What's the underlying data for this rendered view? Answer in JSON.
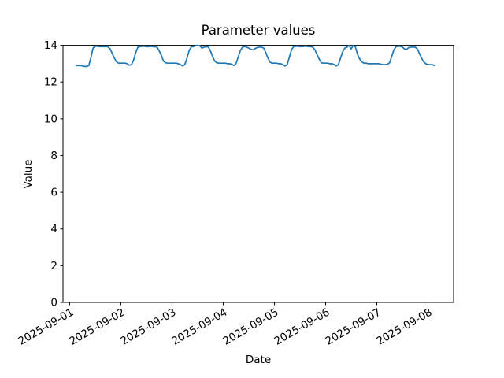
{
  "figure": {
    "background": "#ffffff",
    "text_color": "#000000"
  },
  "chart_data": {
    "type": "line",
    "title": "Parameter values",
    "xlabel": "Date",
    "ylabel": "Value",
    "legend": "none",
    "grid": false,
    "ylim": [
      0,
      14
    ],
    "y_ticks": [
      0,
      2,
      4,
      6,
      8,
      10,
      12,
      14
    ],
    "x_tick_labels": [
      "2025-09-01",
      "2025-09-02",
      "2025-09-03",
      "2025-09-04",
      "2025-09-05",
      "2025-09-06",
      "2025-09-07",
      "2025-09-08"
    ],
    "x_tick_hours": [
      0,
      24,
      48,
      72,
      96,
      120,
      144,
      168
    ],
    "xlim_hours": [
      -3.1,
      180.0
    ],
    "x_tick_rotation_deg": 30,
    "line_color": "#1f77b4",
    "series": [
      {
        "name": "Parameter values",
        "x_start": "2025-09-01 03:00",
        "x_start_hour": 3,
        "x_step_hours": 1,
        "values": [
          12.9,
          12.9,
          12.9,
          12.88,
          12.85,
          12.85,
          12.9,
          13.35,
          13.85,
          13.95,
          13.95,
          13.93,
          13.93,
          13.93,
          13.93,
          13.92,
          13.8,
          13.55,
          13.3,
          13.1,
          13.03,
          13.03,
          13.03,
          13.03,
          13.0,
          12.92,
          12.95,
          13.2,
          13.6,
          13.9,
          13.93,
          13.95,
          13.95,
          13.93,
          13.93,
          13.95,
          13.93,
          13.92,
          13.9,
          13.7,
          13.45,
          13.15,
          13.05,
          13.03,
          13.03,
          13.03,
          13.03,
          13.03,
          13.0,
          12.95,
          12.88,
          12.95,
          13.3,
          13.7,
          13.92,
          13.93,
          13.97,
          14.0,
          13.98,
          13.85,
          13.9,
          13.92,
          13.92,
          13.7,
          13.4,
          13.15,
          13.05,
          13.03,
          13.03,
          13.03,
          13.03,
          13.0,
          13.0,
          12.97,
          12.9,
          13.0,
          13.35,
          13.7,
          13.9,
          13.93,
          13.9,
          13.85,
          13.78,
          13.75,
          13.83,
          13.88,
          13.9,
          13.9,
          13.85,
          13.6,
          13.3,
          13.08,
          13.03,
          13.03,
          13.03,
          13.0,
          13.0,
          12.95,
          12.87,
          12.95,
          13.35,
          13.75,
          13.93,
          13.95,
          13.95,
          13.93,
          13.93,
          13.95,
          13.95,
          13.93,
          13.93,
          13.9,
          13.75,
          13.5,
          13.25,
          13.05,
          13.03,
          13.03,
          13.03,
          13.0,
          13.0,
          12.95,
          12.88,
          12.95,
          13.3,
          13.65,
          13.85,
          13.9,
          14.0,
          13.8,
          14.0,
          13.9,
          13.5,
          13.25,
          13.1,
          13.03,
          13.03,
          13.0,
          13.0,
          13.0,
          13.0,
          13.0,
          13.0,
          12.97,
          12.95,
          12.95,
          12.97,
          13.05,
          13.4,
          13.75,
          13.92,
          13.95,
          13.95,
          13.9,
          13.8,
          13.78,
          13.88,
          13.9,
          13.9,
          13.9,
          13.8,
          13.55,
          13.3,
          13.1,
          13.0,
          12.95,
          12.95,
          12.95,
          12.9
        ]
      }
    ]
  }
}
